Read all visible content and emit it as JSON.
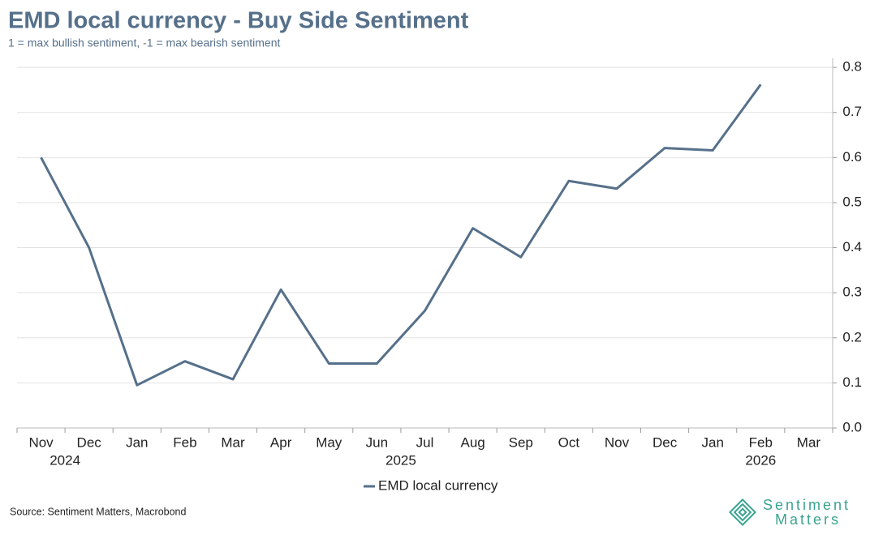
{
  "chart_data": {
    "type": "line",
    "title": "EMD local currency - Buy Side Sentiment",
    "subtitle": "1 = max bullish sentiment, -1 = max bearish sentiment",
    "categories": [
      "Nov",
      "Dec",
      "Jan",
      "Feb",
      "Mar",
      "Apr",
      "May",
      "Jun",
      "Jul",
      "Aug",
      "Sep",
      "Oct",
      "Nov",
      "Dec",
      "Jan",
      "Feb",
      "Mar"
    ],
    "year_labels": [
      "2024",
      "2025",
      "2026"
    ],
    "series": [
      {
        "name": "EMD local currency",
        "color": "#56708a",
        "values": [
          0.6,
          0.4,
          0.095,
          0.148,
          0.108,
          0.307,
          0.143,
          0.143,
          0.26,
          0.443,
          0.379,
          0.548,
          0.531,
          0.621,
          0.616,
          0.762,
          null
        ]
      }
    ],
    "ylim": [
      0,
      0.82
    ],
    "yticks": [
      {
        "value": 0,
        "label": "0.0"
      },
      0.1,
      0.2,
      0.3,
      0.4,
      0.5,
      0.6,
      0.7,
      0.8
    ],
    "grid": true,
    "legend": "bottom",
    "source": "Source: Sentiment Matters, Macrobond",
    "logo": [
      "Sentiment",
      "Matters"
    ]
  }
}
